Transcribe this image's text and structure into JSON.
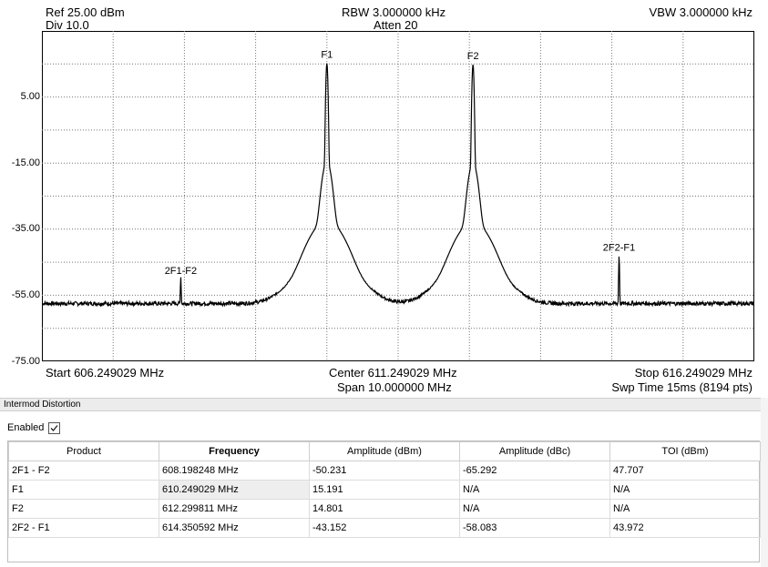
{
  "header": {
    "ref": "Ref 25.00 dBm",
    "div": "Div 10.0",
    "rbw": "RBW 3.000000 kHz",
    "atten": "Atten 20",
    "vbw": "VBW 3.000000 kHz"
  },
  "y_axis_labels": [
    "5.00",
    "-15.00",
    "-35.00",
    "-55.00",
    "-75.00"
  ],
  "marker_labels": {
    "f1": "F1",
    "f2": "F2",
    "im3_low": "2F1-F2",
    "im3_high": "2F2-F1"
  },
  "footer": {
    "start": "Start 606.249029 MHz",
    "center": "Center 611.249029 MHz",
    "span": "Span 10.000000 MHz",
    "stop": "Stop 616.249029 MHz",
    "sweep": "Swp Time 15ms (8194 pts)"
  },
  "chart_data": {
    "type": "line",
    "x_unit": "MHz",
    "y_unit": "dBm",
    "xlim": [
      606.249029,
      616.249029
    ],
    "ylim": [
      -75,
      25
    ],
    "grid": true,
    "noise_floor": -57.5,
    "peaks": [
      {
        "label": "2F1-F2",
        "freq": 608.198248,
        "amp": -50.231
      },
      {
        "label": "F1",
        "freq": 610.249029,
        "amp": 15.191
      },
      {
        "label": "F2",
        "freq": 612.299811,
        "amp": 14.801
      },
      {
        "label": "2F2-F1",
        "freq": 614.350592,
        "amp": -43.152
      }
    ]
  },
  "panel": {
    "title": "Intermod Distortion",
    "enabled_label": "Enabled",
    "enabled": true,
    "columns": [
      "Product",
      "Frequency",
      "Amplitude (dBm)",
      "Amplitude (dBc)",
      "TOI (dBm)"
    ],
    "rows": [
      [
        "2F1 - F2",
        "608.198248 MHz",
        "-50.231",
        "-65.292",
        "47.707"
      ],
      [
        "F1",
        "610.249029 MHz",
        "15.191",
        "N/A",
        "N/A"
      ],
      [
        "F2",
        "612.299811 MHz",
        "14.801",
        "N/A",
        "N/A"
      ],
      [
        "2F2 - F1",
        "614.350592 MHz",
        "-43.152",
        "-58.083",
        "43.972"
      ]
    ]
  }
}
